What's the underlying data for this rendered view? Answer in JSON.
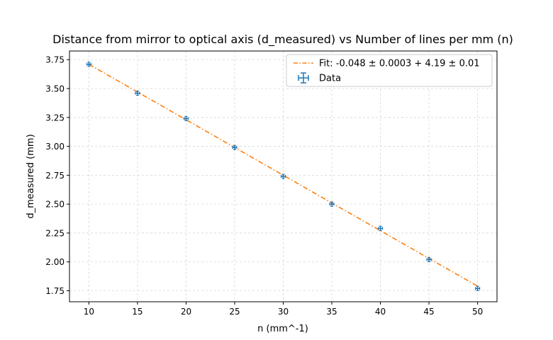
{
  "chart_data": {
    "type": "scatter",
    "title": "Distance from mirror to optical axis (d_measured) vs Number of lines per mm (n)",
    "xlabel": "n (mm^-1)",
    "ylabel": "d_measured (mm)",
    "xlim": [
      8.0,
      52.0
    ],
    "ylim": [
      1.655,
      3.825
    ],
    "grid": true,
    "legend_position": "top-right",
    "x_ticks": [
      10,
      15,
      20,
      25,
      30,
      35,
      40,
      45,
      50
    ],
    "x_tick_labels": [
      "10",
      "15",
      "20",
      "25",
      "30",
      "35",
      "40",
      "45",
      "50"
    ],
    "y_ticks": [
      1.75,
      2.0,
      2.25,
      2.5,
      2.75,
      3.0,
      3.25,
      3.5,
      3.75
    ],
    "y_tick_labels": [
      "1.75",
      "2.00",
      "2.25",
      "2.50",
      "2.75",
      "3.00",
      "3.25",
      "3.50",
      "3.75"
    ],
    "series": [
      {
        "name": "Data",
        "kind": "errorbar",
        "color": "#1f77b4",
        "x": [
          10,
          15,
          20,
          25,
          30,
          35,
          40,
          45,
          50
        ],
        "y": [
          3.71,
          3.46,
          3.24,
          2.99,
          2.74,
          2.5,
          2.29,
          2.02,
          1.77
        ]
      },
      {
        "name": "Fit: -0.048 ± 0.0003 + 4.19 ± 0.01",
        "kind": "line",
        "style": "dash-dot",
        "color": "#ff7f0e",
        "slope": -0.048,
        "intercept": 4.19,
        "x_range": [
          10,
          50
        ]
      }
    ]
  }
}
